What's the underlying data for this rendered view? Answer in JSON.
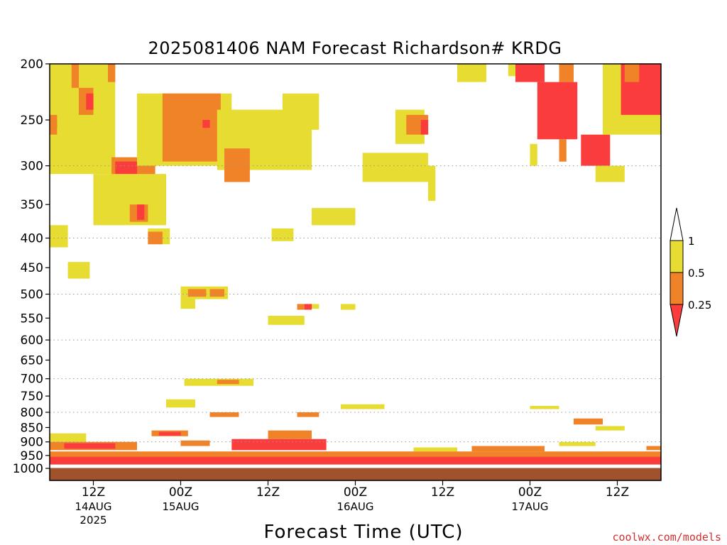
{
  "chart_data": {
    "type": "heatmap",
    "title": "2025081406 NAM Forecast Richardson# KRDG",
    "xlabel": "Forecast Time (UTC)",
    "ylabel": "",
    "credit": "coolwx.com/models",
    "y_axis": {
      "scale": "log-pressure",
      "range": [
        1000,
        200
      ],
      "ticks": [
        200,
        250,
        300,
        350,
        400,
        450,
        500,
        550,
        600,
        650,
        700,
        750,
        800,
        850,
        900,
        950,
        1000
      ],
      "grid_levels": [
        300,
        400,
        500,
        600,
        700,
        800,
        900,
        1000
      ],
      "grid_style": "dotted"
    },
    "x_axis": {
      "range": [
        0,
        84
      ],
      "ticks": [
        {
          "hour": 6,
          "time": "12Z",
          "date": "14AUG",
          "year": "2025"
        },
        {
          "hour": 18,
          "time": "00Z",
          "date": "15AUG",
          "year": ""
        },
        {
          "hour": 30,
          "time": "12Z",
          "date": "",
          "year": ""
        },
        {
          "hour": 42,
          "time": "00Z",
          "date": "16AUG",
          "year": ""
        },
        {
          "hour": 54,
          "time": "12Z",
          "date": "",
          "year": ""
        },
        {
          "hour": 66,
          "time": "00Z",
          "date": "17AUG",
          "year": ""
        },
        {
          "hour": 78,
          "time": "12Z",
          "date": "",
          "year": ""
        }
      ]
    },
    "legend": {
      "position": "right",
      "levels": [
        "1",
        "0.5",
        "0.25"
      ],
      "bins": [
        {
          "range": "> 1",
          "color": "#ffffff"
        },
        {
          "range": "0.5 - 1",
          "color": "#e6dc32"
        },
        {
          "range": "0.25 - 0.5",
          "color": "#f08228"
        },
        {
          "range": "< 0.25",
          "color": "#fa3c3c"
        }
      ]
    },
    "colors": {
      "yellow": "#e6dc32",
      "orange": "#f08228",
      "red": "#fa3c3c",
      "ground": "#a0522d"
    },
    "regions": [
      {
        "c": "y",
        "h": [
          0,
          9
        ],
        "p": [
          200,
          310
        ]
      },
      {
        "c": "o",
        "h": [
          3,
          4
        ],
        "p": [
          200,
          220
        ]
      },
      {
        "c": "o",
        "h": [
          8,
          9
        ],
        "p": [
          200,
          215
        ]
      },
      {
        "c": "o",
        "h": [
          4,
          6
        ],
        "p": [
          220,
          245
        ]
      },
      {
        "c": "r",
        "h": [
          5,
          6
        ],
        "p": [
          225,
          240
        ]
      },
      {
        "c": "r",
        "h": [
          0,
          1
        ],
        "p": [
          250,
          258
        ]
      },
      {
        "c": "o",
        "h": [
          0,
          1
        ],
        "p": [
          245,
          265
        ]
      },
      {
        "c": "o",
        "h": [
          8.5,
          14.5
        ],
        "p": [
          290,
          330
        ]
      },
      {
        "c": "r",
        "h": [
          9,
          12
        ],
        "p": [
          295,
          310
        ]
      },
      {
        "c": "y",
        "h": [
          6,
          16
        ],
        "p": [
          310,
          380
        ]
      },
      {
        "c": "o",
        "h": [
          11,
          13.5
        ],
        "p": [
          350,
          375
        ]
      },
      {
        "c": "r",
        "h": [
          12,
          13
        ],
        "p": [
          350,
          372
        ]
      },
      {
        "c": "y",
        "h": [
          12,
          25
        ],
        "p": [
          225,
          300
        ]
      },
      {
        "c": "o",
        "h": [
          15.5,
          23.5
        ],
        "p": [
          225,
          295
        ]
      },
      {
        "c": "r",
        "h": [
          21,
          22
        ],
        "p": [
          250,
          258
        ]
      },
      {
        "c": "y",
        "h": [
          23,
          36
        ],
        "p": [
          240,
          305
        ]
      },
      {
        "c": "o",
        "h": [
          24,
          27.5
        ],
        "p": [
          280,
          320
        ]
      },
      {
        "c": "y",
        "h": [
          32,
          37
        ],
        "p": [
          225,
          260
        ]
      },
      {
        "c": "y",
        "h": [
          43,
          52
        ],
        "p": [
          285,
          320
        ]
      },
      {
        "c": "y",
        "h": [
          47.5,
          51.5
        ],
        "p": [
          240,
          275
        ]
      },
      {
        "c": "o",
        "h": [
          49,
          52
        ],
        "p": [
          245,
          265
        ]
      },
      {
        "c": "r",
        "h": [
          51,
          52
        ],
        "p": [
          250,
          265
        ]
      },
      {
        "c": "y",
        "h": [
          52,
          53
        ],
        "p": [
          300,
          345
        ]
      },
      {
        "c": "y",
        "h": [
          36,
          42
        ],
        "p": [
          355,
          380
        ]
      },
      {
        "c": "y",
        "h": [
          56,
          60
        ],
        "p": [
          200,
          215
        ]
      },
      {
        "c": "y",
        "h": [
          63,
          64
        ],
        "p": [
          200,
          210
        ]
      },
      {
        "c": "r",
        "h": [
          64,
          68
        ],
        "p": [
          200,
          215
        ]
      },
      {
        "c": "r",
        "h": [
          67,
          72.5
        ],
        "p": [
          215,
          270
        ]
      },
      {
        "c": "y",
        "h": [
          66,
          67
        ],
        "p": [
          275,
          300
        ]
      },
      {
        "c": "o",
        "h": [
          70,
          71
        ],
        "p": [
          270,
          295
        ]
      },
      {
        "c": "r",
        "h": [
          73,
          77
        ],
        "p": [
          265,
          300
        ]
      },
      {
        "c": "o",
        "h": [
          70,
          72
        ],
        "p": [
          200,
          215
        ]
      },
      {
        "c": "y",
        "h": [
          75,
          79
        ],
        "p": [
          300,
          320
        ]
      },
      {
        "c": "y",
        "h": [
          76,
          84
        ],
        "p": [
          200,
          265
        ]
      },
      {
        "c": "r",
        "h": [
          78.5,
          84
        ],
        "p": [
          200,
          245
        ]
      },
      {
        "c": "o",
        "h": [
          79,
          81
        ],
        "p": [
          200,
          215
        ]
      },
      {
        "c": "y",
        "h": [
          0,
          2.5
        ],
        "p": [
          380,
          415
        ]
      },
      {
        "c": "y",
        "h": [
          2.5,
          5.5
        ],
        "p": [
          440,
          470
        ]
      },
      {
        "c": "y",
        "h": [
          13.5,
          16.5
        ],
        "p": [
          385,
          410
        ]
      },
      {
        "c": "o",
        "h": [
          13.5,
          15.5
        ],
        "p": [
          390,
          410
        ]
      },
      {
        "c": "y",
        "h": [
          30.5,
          33.5
        ],
        "p": [
          385,
          405
        ]
      },
      {
        "c": "y",
        "h": [
          18,
          24.5
        ],
        "p": [
          485,
          510
        ]
      },
      {
        "c": "o",
        "h": [
          19,
          21.5
        ],
        "p": [
          490,
          505
        ]
      },
      {
        "c": "o",
        "h": [
          22,
          24
        ],
        "p": [
          490,
          505
        ]
      },
      {
        "c": "y",
        "h": [
          18,
          20
        ],
        "p": [
          510,
          530
        ]
      },
      {
        "c": "y",
        "h": [
          34,
          37
        ],
        "p": [
          520,
          530
        ]
      },
      {
        "c": "o",
        "h": [
          34,
          35
        ],
        "p": [
          520,
          532
        ]
      },
      {
        "c": "r",
        "h": [
          35,
          36
        ],
        "p": [
          520,
          532
        ]
      },
      {
        "c": "y",
        "h": [
          40,
          42
        ],
        "p": [
          520,
          532
        ]
      },
      {
        "c": "y",
        "h": [
          30,
          35
        ],
        "p": [
          545,
          565
        ]
      },
      {
        "c": "y",
        "h": [
          18.5,
          28
        ],
        "p": [
          700,
          720
        ]
      },
      {
        "c": "o",
        "h": [
          23,
          26
        ],
        "p": [
          703,
          715
        ]
      },
      {
        "c": "y",
        "h": [
          16,
          20
        ],
        "p": [
          760,
          785
        ]
      },
      {
        "c": "y",
        "h": [
          40,
          46
        ],
        "p": [
          775,
          790
        ]
      },
      {
        "c": "y",
        "h": [
          0,
          5
        ],
        "p": [
          870,
          900
        ]
      },
      {
        "c": "o",
        "h": [
          14,
          19
        ],
        "p": [
          860,
          880
        ]
      },
      {
        "c": "r",
        "h": [
          15,
          18
        ],
        "p": [
          865,
          878
        ]
      },
      {
        "c": "o",
        "h": [
          22,
          26
        ],
        "p": [
          800,
          815
        ]
      },
      {
        "c": "o",
        "h": [
          34,
          37
        ],
        "p": [
          800,
          815
        ]
      },
      {
        "c": "y",
        "h": [
          66,
          70
        ],
        "p": [
          780,
          790
        ]
      },
      {
        "c": "o",
        "h": [
          72,
          76
        ],
        "p": [
          820,
          840
        ]
      },
      {
        "c": "y",
        "h": [
          75,
          79
        ],
        "p": [
          845,
          860
        ]
      },
      {
        "c": "o",
        "h": [
          0,
          12
        ],
        "p": [
          900,
          930
        ]
      },
      {
        "c": "r",
        "h": [
          2,
          9
        ],
        "p": [
          905,
          925
        ]
      },
      {
        "c": "o",
        "h": [
          18,
          22
        ],
        "p": [
          895,
          915
        ]
      },
      {
        "c": "r",
        "h": [
          25,
          38
        ],
        "p": [
          890,
          930
        ]
      },
      {
        "c": "o",
        "h": [
          30,
          36
        ],
        "p": [
          860,
          890
        ]
      },
      {
        "c": "y",
        "h": [
          50,
          56
        ],
        "p": [
          920,
          935
        ]
      },
      {
        "c": "o",
        "h": [
          58,
          68
        ],
        "p": [
          915,
          935
        ]
      },
      {
        "c": "y",
        "h": [
          70,
          75
        ],
        "p": [
          900,
          915
        ]
      },
      {
        "c": "o",
        "h": [
          82,
          84
        ],
        "p": [
          915,
          930
        ]
      },
      {
        "c": "r",
        "h": [
          0,
          84
        ],
        "p": [
          950,
          985
        ]
      },
      {
        "c": "o",
        "h": [
          0,
          84
        ],
        "p": [
          935,
          955
        ]
      }
    ]
  }
}
